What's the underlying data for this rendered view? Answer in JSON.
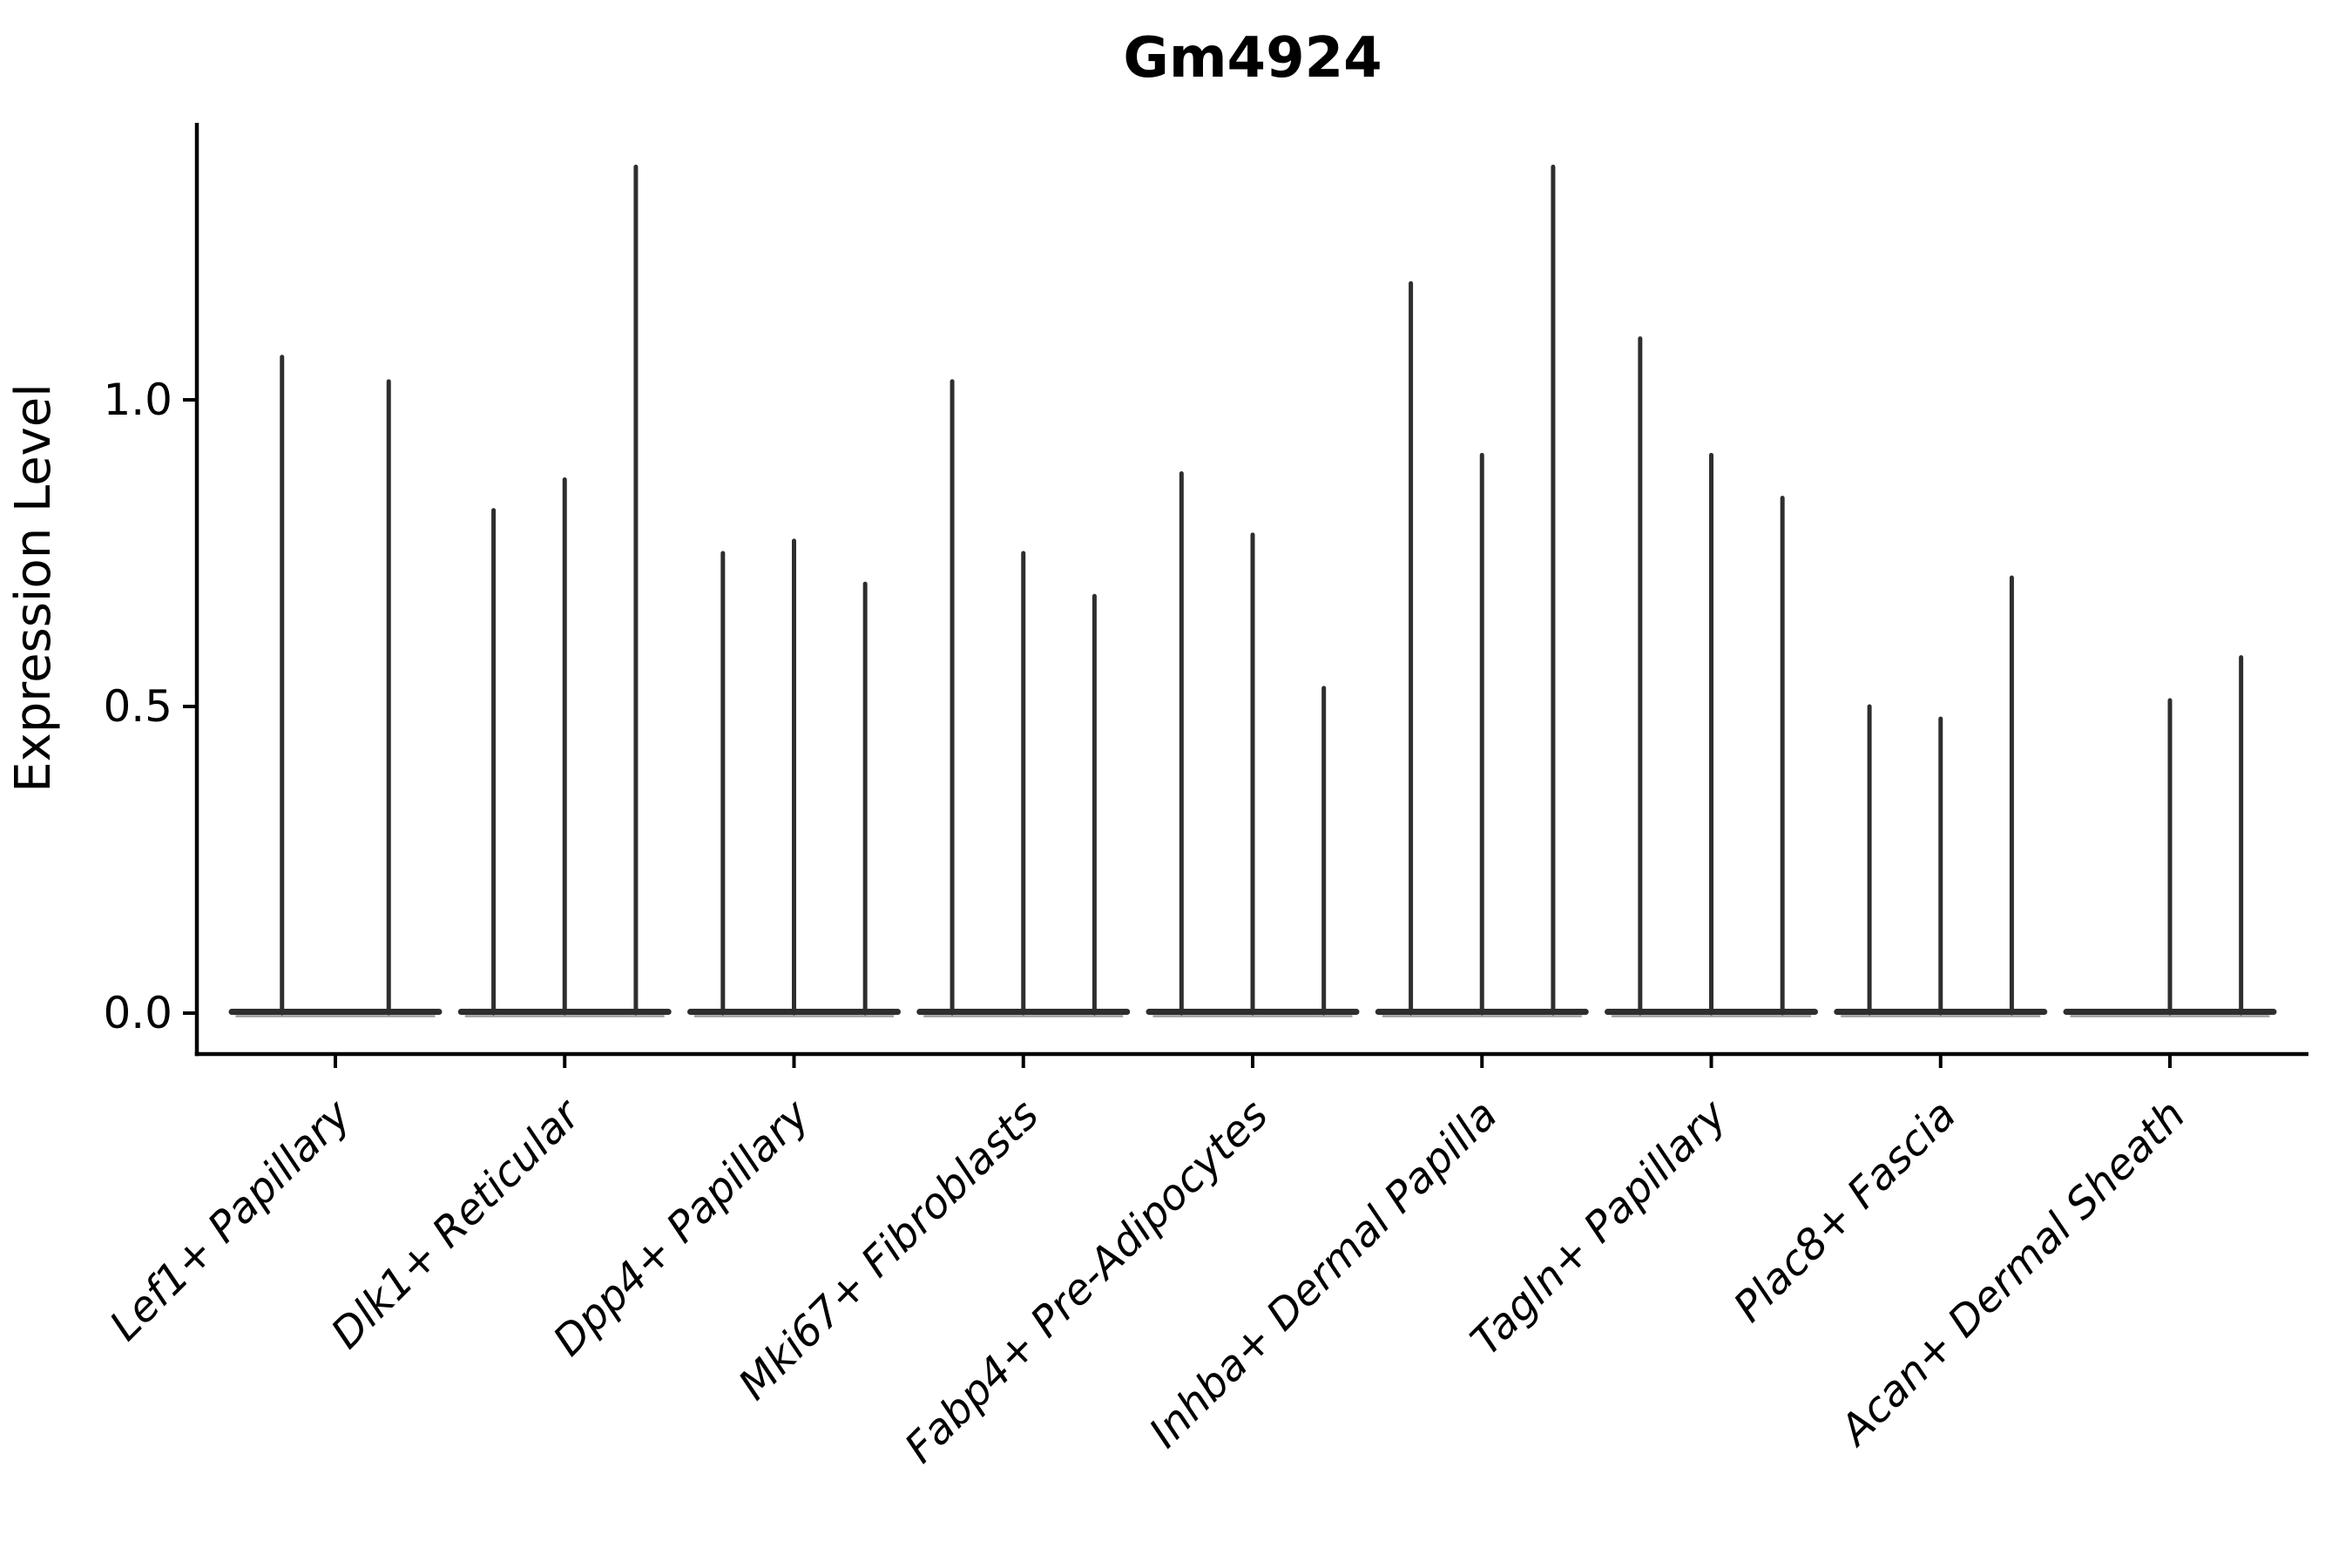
{
  "chart_data": {
    "type": "violin",
    "title": "Gm4924",
    "xlabel": "",
    "ylabel": "Expression Level",
    "yticks": [
      "0.0",
      "0.5",
      "1.0"
    ],
    "ytick_values": [
      0.0,
      0.5,
      1.0
    ],
    "ylim": [
      0.0,
      1.45
    ],
    "grid": false,
    "legend": "none",
    "categories": [
      "Lef1+ Papillary",
      "Dlk1+ Reticular",
      "Dpp4+ Papillary",
      "Mki67+ Fibroblasts",
      "Fabp4+ Pre-Adipocytes",
      "Inhba+ Dermal Papilla",
      "Tagln+ Papillary",
      "Plac8+ Fascia",
      "Acan+ Dermal Sheath"
    ],
    "groups": [
      {
        "label": "Lef1+ Papillary",
        "violin_maxima": [
          1.07,
          1.03
        ]
      },
      {
        "label": "Dlk1+ Reticular",
        "violin_maxima": [
          0.82,
          0.87,
          1.38
        ]
      },
      {
        "label": "Dpp4+ Papillary",
        "violin_maxima": [
          0.75,
          0.77,
          0.7
        ]
      },
      {
        "label": "Mki67+ Fibroblasts",
        "violin_maxima": [
          1.03,
          0.75,
          0.68
        ]
      },
      {
        "label": "Fabp4+ Pre-Adipocytes",
        "violin_maxima": [
          0.88,
          0.78,
          0.53
        ]
      },
      {
        "label": "Inhba+ Dermal Papilla",
        "violin_maxima": [
          1.19,
          0.91,
          1.38
        ]
      },
      {
        "label": "Tagln+ Papillary",
        "violin_maxima": [
          1.1,
          0.91,
          0.84
        ]
      },
      {
        "label": "Plac8+ Fascia",
        "violin_maxima": [
          0.5,
          0.48,
          0.71
        ]
      },
      {
        "label": "Acan+ Dermal Sheath",
        "violin_maxima": [
          0.0,
          0.51,
          0.58
        ]
      }
    ],
    "notes": "Needle-thin violins; all density mass at 0 with a thin spike to each violin's max. A value of 0 means a flat violin with no spike. First group has only 2 violins."
  },
  "style": {
    "background_color": "#ffffff",
    "violin_color": "#2e2e2e",
    "violin_fringe_color": "#9b9b9b",
    "axis_color": "#000000",
    "text_color": "#000000",
    "title_bold": true,
    "xlabels_italic": true,
    "xlabels_rotation_deg": 45
  }
}
